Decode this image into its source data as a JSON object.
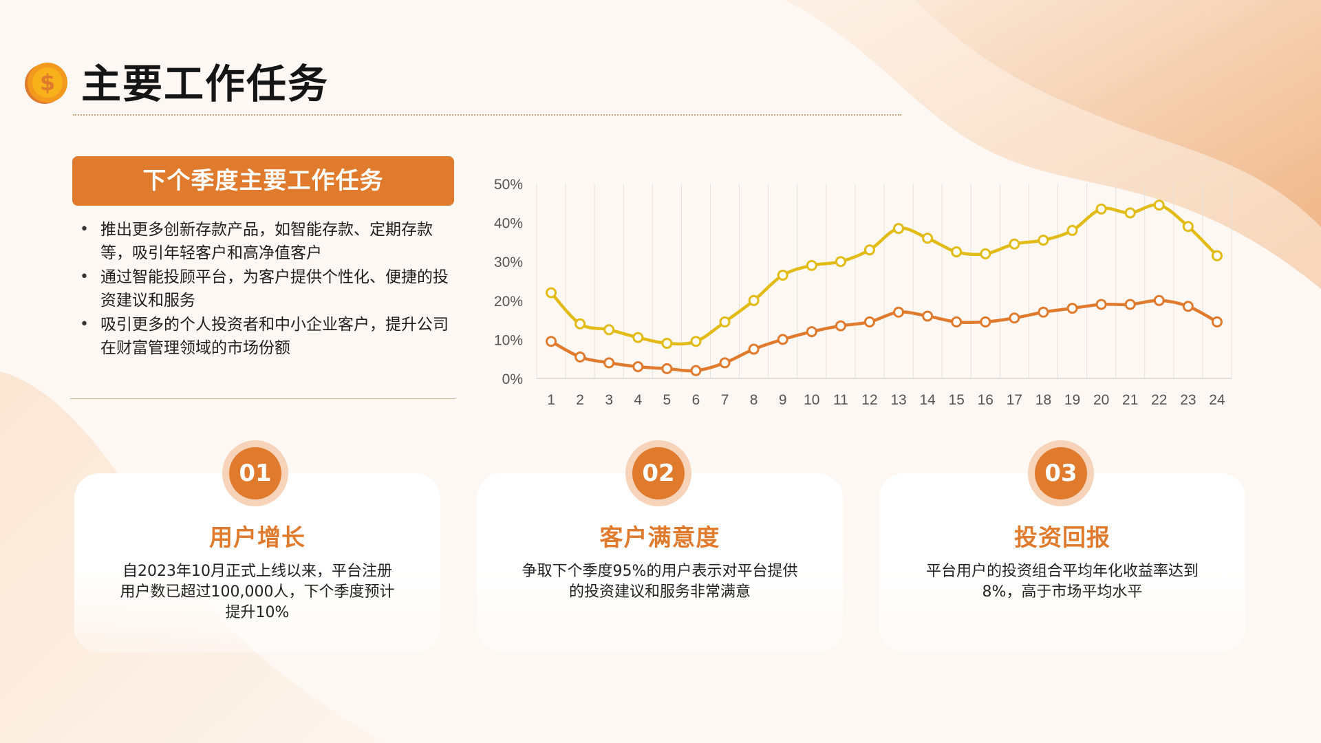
{
  "page": {
    "title": "主要工作任务",
    "colors": {
      "accent": "#e07b2e",
      "secondary": "#e2bb16",
      "peach": "#f6d3b9"
    }
  },
  "icons": {
    "title_icon": "coin-dollar-icon"
  },
  "left_panel": {
    "header": "下个季度主要工作任务",
    "bullets": [
      "推出更多创新存款产品，如智能存款、定期存款等，吸引年轻客户和高净值客户",
      "通过智能投顾平台，为客户提供个性化、便捷的投资建议和服务",
      "吸引更多的个人投资者和中小企业客户，提升公司在财富管理领域的市场份额"
    ]
  },
  "chart_data": {
    "type": "line",
    "title": "",
    "xlabel": "",
    "ylabel": "",
    "x": [
      1,
      2,
      3,
      4,
      5,
      6,
      7,
      8,
      9,
      10,
      11,
      12,
      13,
      14,
      15,
      16,
      17,
      18,
      19,
      20,
      21,
      22,
      23,
      24
    ],
    "ylim": [
      0,
      50
    ],
    "yticks": [
      "0%",
      "10%",
      "20%",
      "30%",
      "40%",
      "50%"
    ],
    "grid": "vertical",
    "legend": "none",
    "series": [
      {
        "color": "#e2bb16",
        "values": [
          22,
          14,
          12.5,
          10.5,
          9,
          9.5,
          14.5,
          20,
          26.5,
          29,
          30,
          33,
          38.5,
          36,
          32.5,
          32,
          34.5,
          35.5,
          38,
          43.5,
          42.5,
          44.5,
          39,
          31.5
        ]
      },
      {
        "color": "#e07b2e",
        "values": [
          9.5,
          5.5,
          4,
          3,
          2.5,
          2,
          4,
          7.5,
          10,
          12,
          13.5,
          14.5,
          17,
          16,
          14.5,
          14.5,
          15.5,
          17,
          18,
          19,
          19,
          20,
          18.5,
          14.5
        ]
      }
    ]
  },
  "cards": [
    {
      "number": "01",
      "title": "用户增长",
      "desc": "自2023年10月正式上线以来，平台注册用户数已超过100,000人，下个季度预计提升10%"
    },
    {
      "number": "02",
      "title": "客户满意度",
      "desc": "争取下个季度95%的用户表示对平台提供的投资建议和服务非常满意"
    },
    {
      "number": "03",
      "title": "投资回报",
      "desc": "平台用户的投资组合平均年化收益率达到8%，高于市场平均水平"
    }
  ]
}
